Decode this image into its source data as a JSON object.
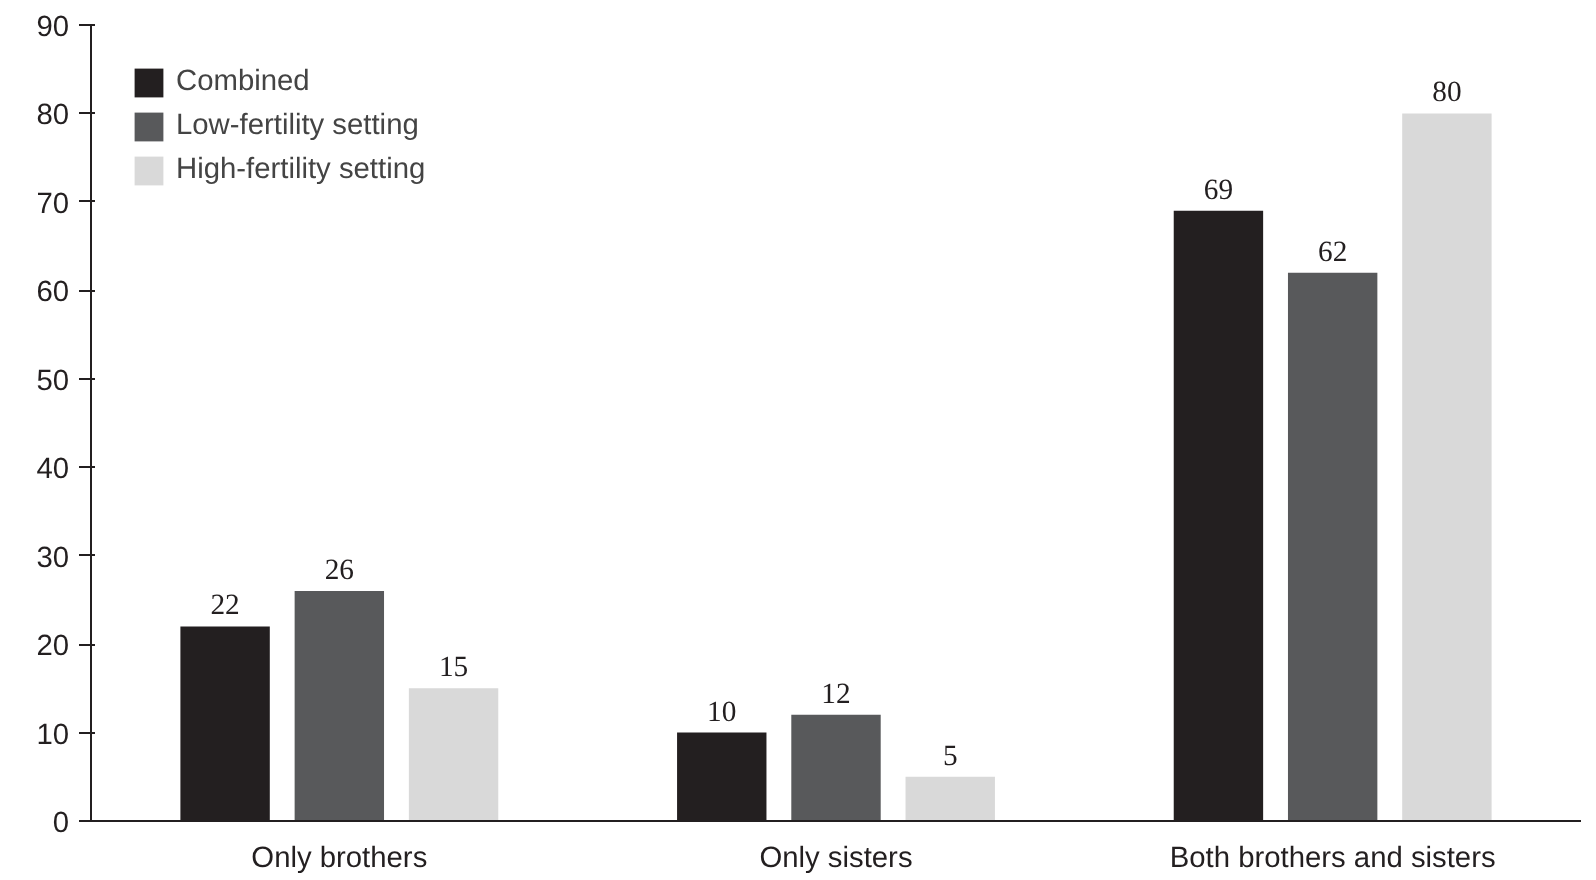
{
  "chart_data": {
    "type": "bar",
    "categories": [
      "Only brothers",
      "Only sisters",
      "Both brothers and sisters"
    ],
    "series": [
      {
        "name": "Combined",
        "color": "#231f20",
        "values": [
          22,
          10,
          69
        ]
      },
      {
        "name": "Low-fertility setting",
        "color": "#58595b",
        "values": [
          26,
          12,
          62
        ]
      },
      {
        "name": "High-fertility setting",
        "color": "#d9d9d9",
        "values": [
          15,
          5,
          80
        ]
      }
    ],
    "ylim": [
      0,
      90
    ],
    "yticks": [
      0,
      10,
      20,
      30,
      40,
      50,
      60,
      70,
      80,
      90
    ],
    "grid": false,
    "legend": "top left",
    "data_labels": true
  }
}
